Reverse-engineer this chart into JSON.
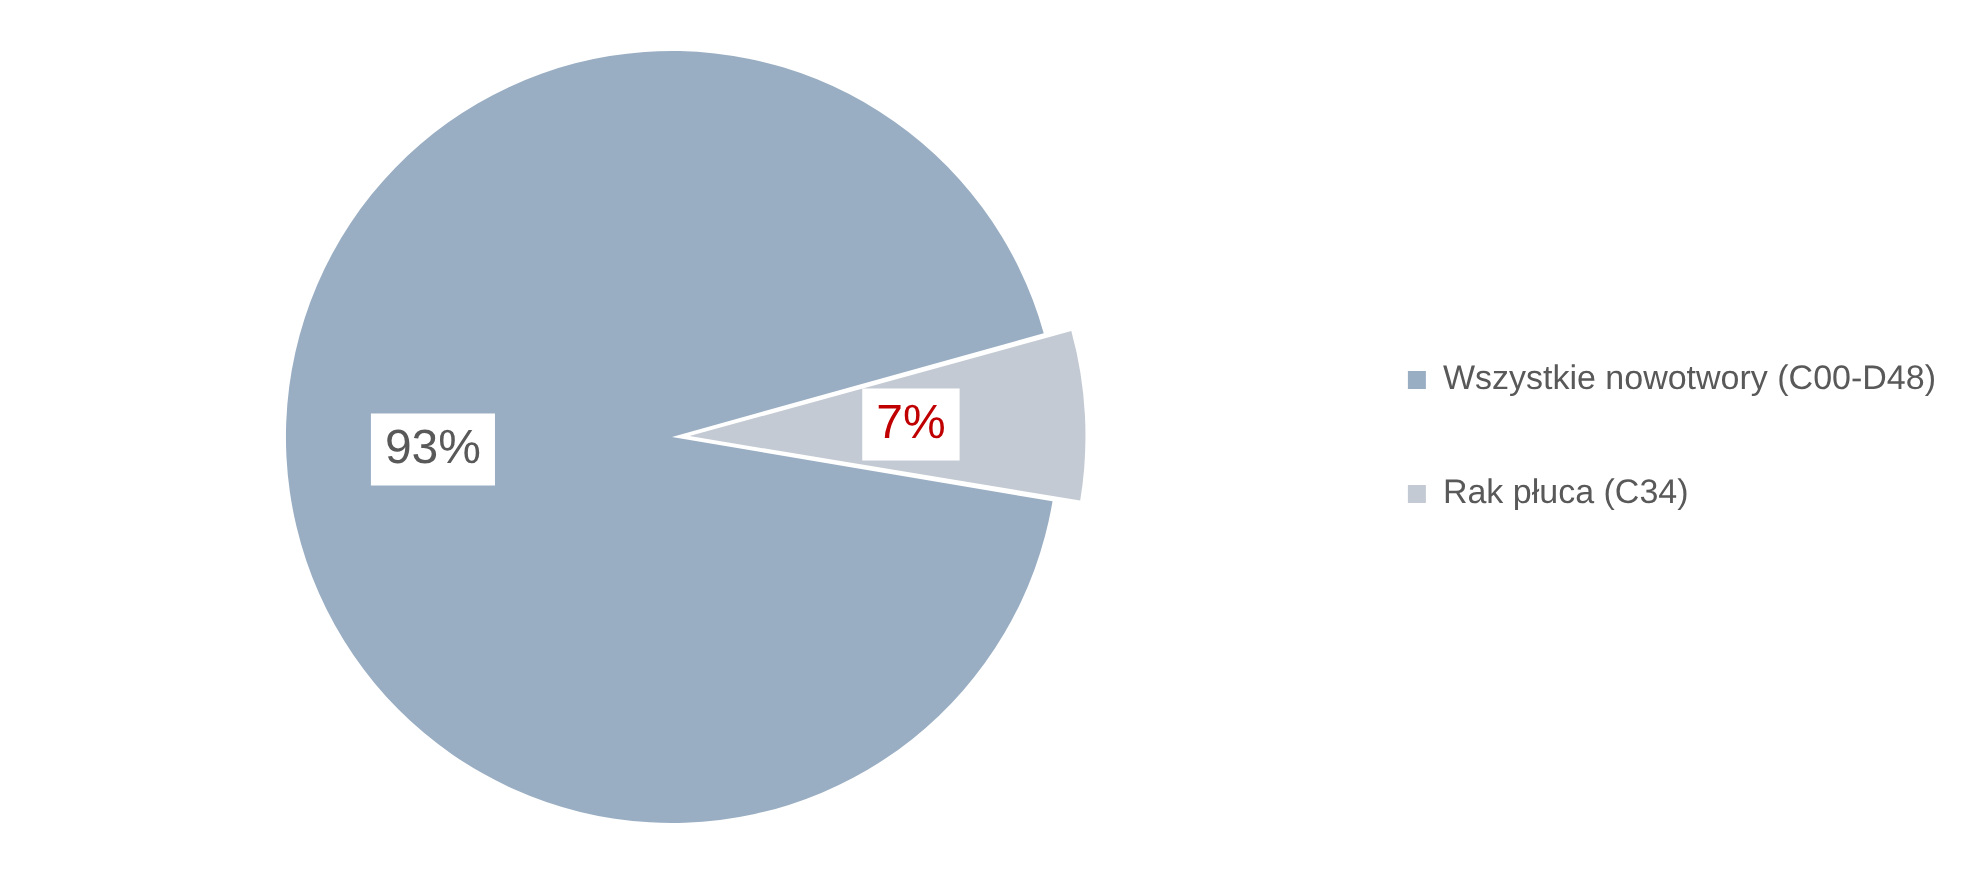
{
  "chart_data": {
    "type": "pie",
    "categories": [
      "Wszystkie nowotwory (C00-D48)",
      "Rak płuca (C34)"
    ],
    "values": [
      93,
      7
    ],
    "colors": [
      "#9aaec3",
      "#c4cad3"
    ],
    "value_labels": [
      "93%",
      "7%"
    ],
    "legend": "right"
  }
}
